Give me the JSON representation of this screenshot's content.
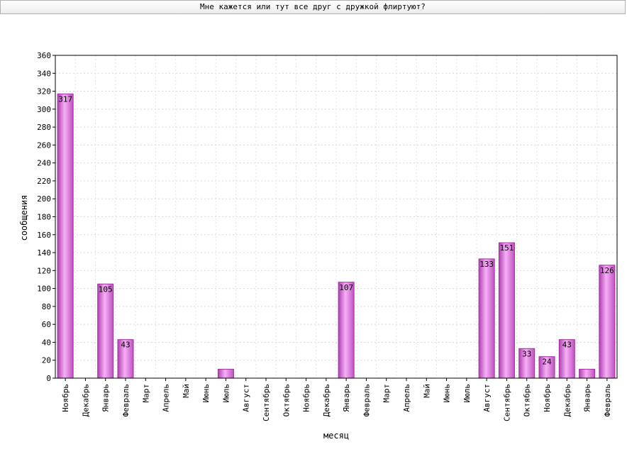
{
  "window": {
    "title": "Мне кажется или тут все друг с дружкой флиртуют?"
  },
  "chart_data": {
    "type": "bar",
    "title": "Мне кажется или тут все друг с дружкой флиртуют?",
    "xlabel": "месяц",
    "ylabel": "сообщения",
    "ylim": [
      0,
      360
    ],
    "ytick_step": 20,
    "grid": true,
    "legend": "none",
    "bar_color": "#e070e0",
    "categories": [
      "Ноябрь",
      "Декабрь",
      "Январь",
      "Февраль",
      "Март",
      "Апрель",
      "Май",
      "Июнь",
      "Июль",
      "Август",
      "Сентябрь",
      "Октябрь",
      "Ноябрь",
      "Декабрь",
      "Январь",
      "Февраль",
      "Март",
      "Апрель",
      "Май",
      "Июнь",
      "Июль",
      "Август",
      "Сентябрь",
      "Октябрь",
      "Ноябрь",
      "Декабрь",
      "Январь",
      "Февраль"
    ],
    "values": [
      317,
      0,
      105,
      43,
      0,
      0,
      0,
      0,
      10,
      0,
      0,
      0,
      0,
      0,
      107,
      0,
      0,
      0,
      0,
      0,
      0,
      133,
      151,
      33,
      24,
      43,
      10,
      126
    ],
    "value_labels": [
      "317",
      "",
      "105",
      "43",
      "",
      "",
      "",
      "",
      "",
      "",
      "",
      "",
      "",
      "",
      "107",
      "",
      "",
      "",
      "",
      "",
      "",
      "133",
      "151",
      "33",
      "24",
      "43",
      "",
      "126"
    ]
  }
}
